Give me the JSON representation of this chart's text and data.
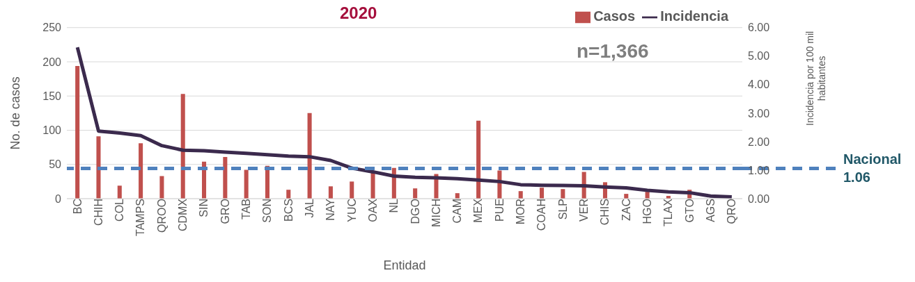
{
  "chart_data": {
    "type": "bar",
    "title": "2020",
    "xlabel": "Entidad",
    "ylabel": "No. de casos",
    "y2label": "Incidencia por 100 mil habitantes",
    "categories": [
      "BC",
      "CHIH",
      "COL",
      "TAMPS",
      "QROO",
      "CDMX",
      "SIN",
      "GRO",
      "TAB",
      "SON",
      "BCS",
      "JAL",
      "NAY",
      "YUC",
      "OAX",
      "NL",
      "DGO",
      "MICH",
      "CAM",
      "MEX",
      "PUE",
      "MOR",
      "COAH",
      "SLP",
      "VER",
      "CHIS",
      "ZAC",
      "HGO",
      "TLAX",
      "GTO",
      "AGS",
      "QRO"
    ],
    "series": [
      {
        "name": "Casos",
        "color": "#c0504d",
        "values": [
          194,
          91,
          19,
          81,
          33,
          153,
          54,
          61,
          42,
          48,
          13,
          125,
          18,
          25,
          38,
          45,
          15,
          36,
          8,
          114,
          41,
          11,
          16,
          14,
          39,
          24,
          7,
          10,
          4,
          13,
          null,
          null
        ]
      },
      {
        "name": "Incidencia",
        "type": "line",
        "axis": "y2",
        "color": "#3b2a4d",
        "values": [
          5.31,
          2.37,
          2.3,
          2.21,
          1.86,
          1.7,
          1.68,
          1.63,
          1.59,
          1.54,
          1.49,
          1.47,
          1.34,
          1.07,
          0.94,
          0.79,
          0.75,
          0.73,
          0.7,
          0.65,
          0.6,
          0.49,
          0.47,
          0.46,
          0.45,
          0.41,
          0.38,
          0.29,
          0.24,
          0.21,
          0.09,
          0.06
        ]
      }
    ],
    "ylim": [
      0,
      250
    ],
    "yticks": [
      0,
      50,
      100,
      150,
      200,
      250
    ],
    "y2lim": [
      0,
      6
    ],
    "y2ticks": [
      {
        "value": 0,
        "label": "0.00"
      },
      {
        "value": 1,
        "label": "1.00"
      },
      {
        "value": 2,
        "label": "2.00"
      },
      {
        "value": 3,
        "label": "3.00"
      },
      {
        "value": 4,
        "label": "4.00"
      },
      {
        "value": 5,
        "label": "5.00"
      },
      {
        "value": 6,
        "label": "6.00"
      }
    ],
    "ref_lines": [
      {
        "axis": "y2",
        "value": 1.06,
        "label": "Nacional 1.06",
        "color": "#4f81bd",
        "line_style": "dashed"
      }
    ],
    "annotations": [
      "n=1,366"
    ],
    "grid": "y",
    "legend": "top right",
    "marker": "none"
  }
}
